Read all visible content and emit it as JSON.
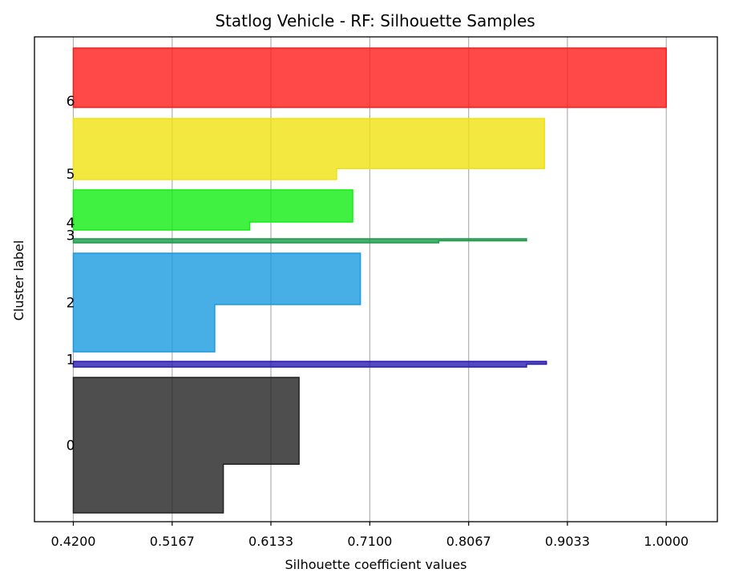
{
  "chart_data": {
    "type": "silhouette",
    "title": "Statlog Vehicle - RF: Silhouette Samples",
    "xlabel": "Silhouette coefficient values",
    "ylabel": "Cluster label",
    "xlim": [
      0.382,
      1.05
    ],
    "xticks": [
      "0.4200",
      "0.5167",
      "0.6133",
      "0.7100",
      "0.8067",
      "0.9033",
      "1.0000"
    ],
    "grid": "vertical",
    "clusters": [
      {
        "label": "0",
        "color": "#222222",
        "steps": [
          {
            "value": 0.5667,
            "share": 0.36
          },
          {
            "value": 0.6408,
            "share": 0.64
          }
        ]
      },
      {
        "label": "1",
        "color": "#2a1bb0",
        "steps": [
          {
            "value": 0.8633,
            "share": 0.5
          },
          {
            "value": 0.8828,
            "share": 0.5
          }
        ]
      },
      {
        "label": "2",
        "color": "#1a9ae0",
        "steps": [
          {
            "value": 0.5583,
            "share": 0.48
          },
          {
            "value": 0.7008,
            "share": 0.52
          }
        ]
      },
      {
        "label": "3",
        "color": "#1a9a4a",
        "steps": [
          {
            "value": 0.7775,
            "share": 0.5
          },
          {
            "value": 0.8633,
            "share": 0.5
          }
        ]
      },
      {
        "label": "4",
        "color": "#12ee12",
        "steps": [
          {
            "value": 0.5925,
            "share": 0.2
          },
          {
            "value": 0.6933,
            "share": 0.8
          }
        ]
      },
      {
        "label": "5",
        "color": "#f0e210",
        "steps": [
          {
            "value": 0.6775,
            "share": 0.18
          },
          {
            "value": 0.8808,
            "share": 0.82
          }
        ]
      },
      {
        "label": "6",
        "color": "#ff1a1a",
        "steps": [
          {
            "value": 1.0,
            "share": 1.0
          }
        ]
      }
    ]
  }
}
